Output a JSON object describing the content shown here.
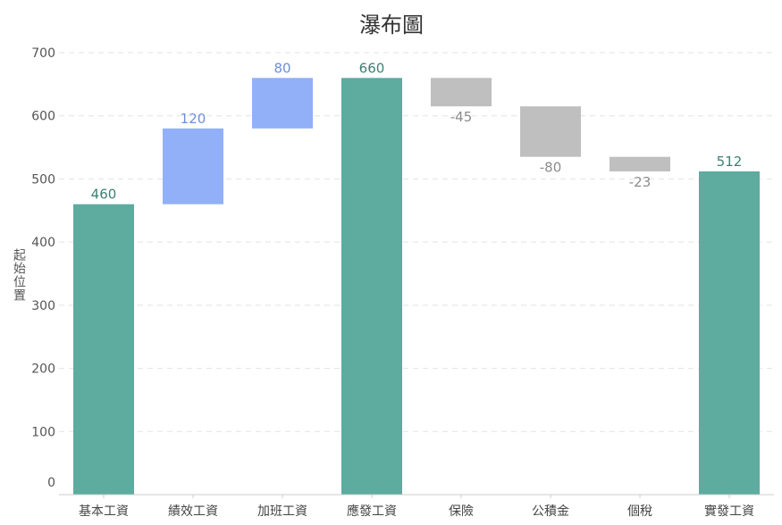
{
  "chart_data": {
    "type": "bar",
    "subtype": "waterfall",
    "title": "瀑布圖",
    "ylabel": "起始位置",
    "xlabel": "",
    "ylim": [
      0,
      700
    ],
    "yticks": [
      0,
      100,
      200,
      300,
      400,
      500,
      600,
      700
    ],
    "grid": true,
    "categories": [
      "基本工資",
      "績效工資",
      "加班工資",
      "應發工資",
      "保險",
      "公積金",
      "個稅",
      "實發工資"
    ],
    "bars": [
      {
        "start": 0,
        "end": 460,
        "label": "460",
        "kind": "total"
      },
      {
        "start": 460,
        "end": 580,
        "label": "120",
        "kind": "increase"
      },
      {
        "start": 580,
        "end": 660,
        "label": "80",
        "kind": "increase"
      },
      {
        "start": 0,
        "end": 660,
        "label": "660",
        "kind": "total"
      },
      {
        "start": 660,
        "end": 615,
        "label": "-45",
        "kind": "decrease"
      },
      {
        "start": 615,
        "end": 535,
        "label": "-80",
        "kind": "decrease"
      },
      {
        "start": 535,
        "end": 512,
        "label": "-23",
        "kind": "decrease"
      },
      {
        "start": 0,
        "end": 512,
        "label": "512",
        "kind": "total"
      }
    ],
    "colors": {
      "total": "#5eaba0",
      "increase": "#91b0f7",
      "decrease": "#bfbfbf",
      "total_label": "#3e7f72",
      "increase_label": "#6d8fd8",
      "decrease_label": "#8c8c8c"
    }
  }
}
